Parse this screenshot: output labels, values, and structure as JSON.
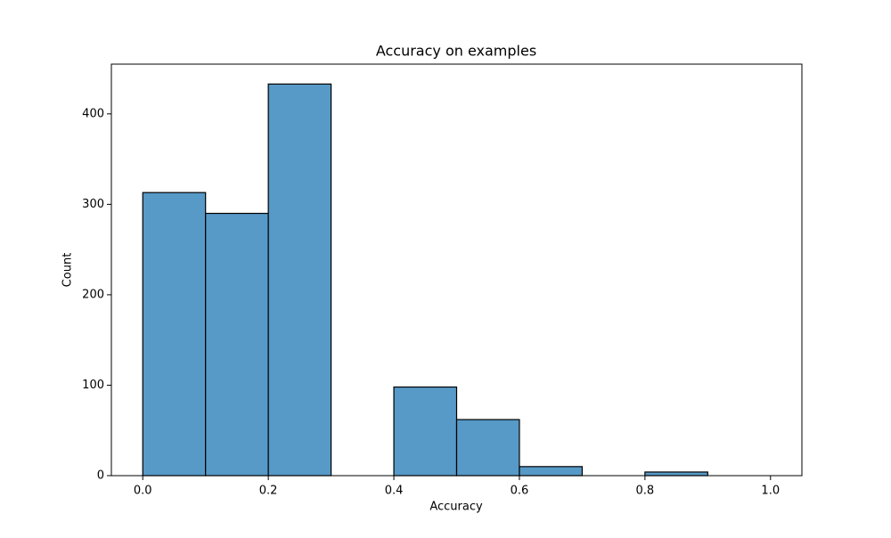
{
  "chart_data": {
    "type": "histogram",
    "title": "Accuracy on examples",
    "x_label": "Accuracy",
    "y_label": "Count",
    "bins": [
      0,
      0.1,
      0.2,
      0.3,
      0.4,
      0.5,
      0.6,
      0.7,
      0.8,
      0.9,
      1.0
    ],
    "values": [
      313,
      290,
      433,
      0,
      98,
      62,
      10,
      0,
      4,
      0
    ],
    "color": "#5799c7",
    "edgecolor": "#000000",
    "xlim": [
      -0.05,
      1.05
    ],
    "xticks": [
      {
        "value": 0,
        "label": "0.0"
      },
      0.2,
      0.4,
      0.6,
      0.8,
      {
        "value": 1,
        "label": "1.0"
      }
    ],
    "ylim": [
      0,
      455
    ],
    "yticks": [
      0,
      100,
      200,
      300,
      400
    ],
    "grid": false
  }
}
